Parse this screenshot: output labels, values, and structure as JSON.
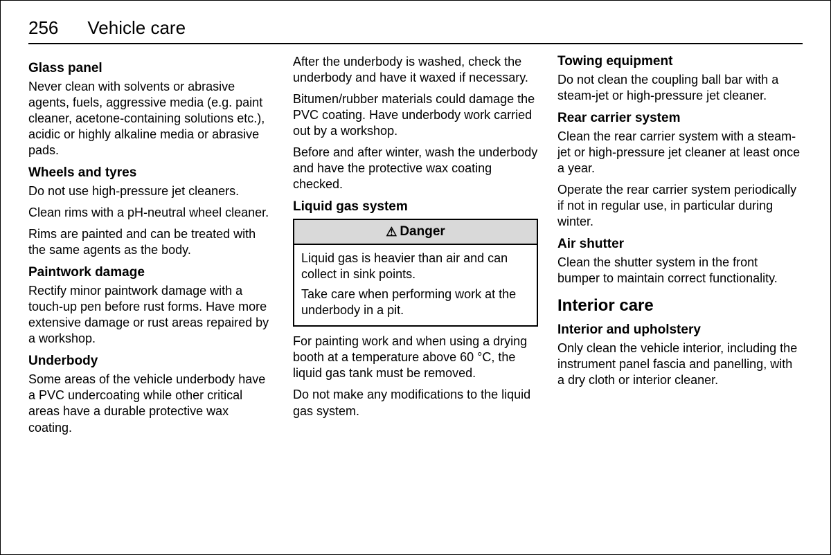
{
  "header": {
    "page_number": "256",
    "title": "Vehicle care"
  },
  "col1": {
    "s1": {
      "heading": "Glass panel",
      "p1": "Never clean with solvents or abrasive agents, fuels, aggressive media (e.g. paint cleaner, acetone-containing solutions etc.), acidic or highly alkaline media or abrasive pads."
    },
    "s2": {
      "heading": "Wheels and tyres",
      "p1": "Do not use high-pressure jet cleaners.",
      "p2": "Clean rims with a pH-neutral wheel cleaner.",
      "p3": "Rims are painted and can be treated with the same agents as the body."
    },
    "s3": {
      "heading": "Paintwork damage",
      "p1": "Rectify minor paintwork damage with a touch-up pen before rust forms. Have more extensive damage or rust areas repaired by a workshop."
    },
    "s4": {
      "heading": "Underbody",
      "p1": "Some areas of the vehicle underbody have a PVC undercoating while other critical areas have a durable protective wax coating."
    }
  },
  "col2": {
    "p1": "After the underbody is washed, check the underbody and have it waxed if necessary.",
    "p2": "Bitumen/rubber materials could damage the PVC coating. Have underbody work carried out by a workshop.",
    "p3": "Before and after winter, wash the underbody and have the protective wax coating checked.",
    "s1": {
      "heading": "Liquid gas system"
    },
    "warn": {
      "label": "Danger",
      "p1": "Liquid gas is heavier than air and can collect in sink points.",
      "p2": "Take care when performing work at the underbody in a pit."
    },
    "p4": "For painting work and when using a drying booth at a temperature above 60 °C, the liquid gas tank must be removed.",
    "p5": "Do not make any modifications to the liquid gas system."
  },
  "col3": {
    "s1": {
      "heading": "Towing equipment",
      "p1": "Do not clean the coupling ball bar with a steam-jet or high-pressure jet cleaner."
    },
    "s2": {
      "heading": "Rear carrier system",
      "p1": "Clean the rear carrier system with a steam-jet or high-pressure jet cleaner at least once a year.",
      "p2": "Operate the rear carrier system periodically if not in regular use, in particular during winter."
    },
    "s3": {
      "heading": "Air shutter",
      "p1": "Clean the shutter system in the front bumper to maintain correct functionality."
    },
    "sec": {
      "heading": "Interior care"
    },
    "s4": {
      "heading": "Interior and upholstery",
      "p1": "Only clean the vehicle interior, including the instrument panel fascia and panelling, with a dry cloth or interior cleaner."
    }
  }
}
